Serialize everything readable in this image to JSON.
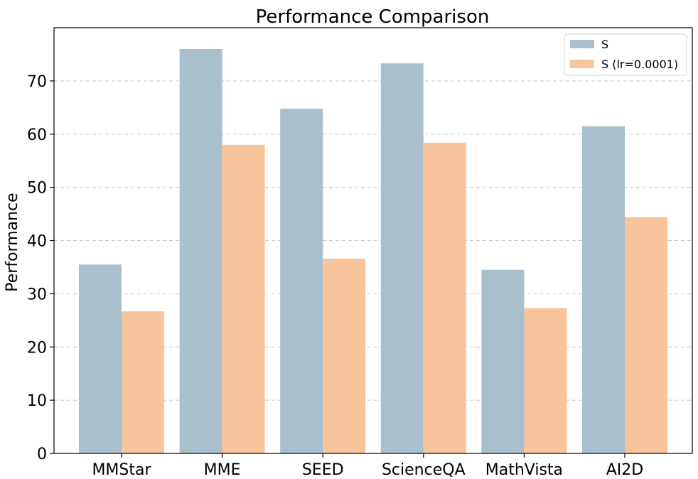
{
  "chart_data": {
    "type": "bar",
    "title": "Performance Comparison",
    "xlabel": "",
    "ylabel": "Performance",
    "categories": [
      "MMStar",
      "MME",
      "SEED",
      "ScienceQA",
      "MathVista",
      "AI2D"
    ],
    "series": [
      {
        "name": "S",
        "color": "#a9bfcc",
        "values": [
          35.5,
          76.0,
          64.8,
          73.3,
          34.5,
          61.5
        ]
      },
      {
        "name": "S (lr=0.0001)",
        "color": "#f7c49b",
        "values": [
          26.7,
          58.0,
          36.6,
          58.4,
          27.3,
          44.4
        ]
      }
    ],
    "ylim": [
      0,
      80
    ],
    "yticks": [
      0,
      10,
      20,
      30,
      40,
      50,
      60,
      70
    ],
    "grid": true,
    "legend_position": "top-right"
  }
}
